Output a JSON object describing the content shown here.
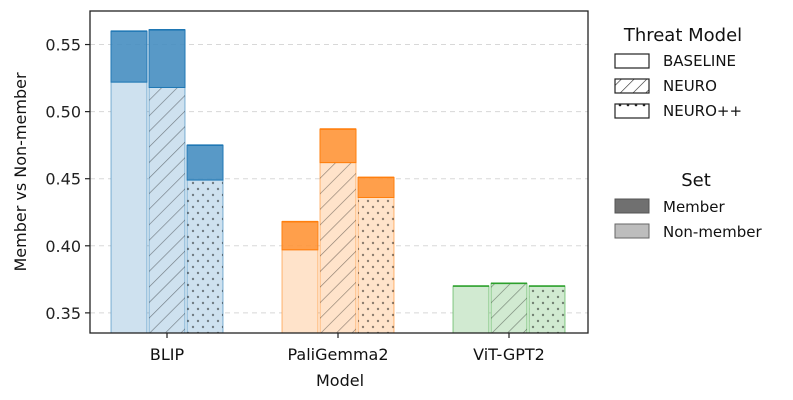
{
  "chart_data": {
    "type": "bar",
    "title": "",
    "xlabel": "Model",
    "ylabel": "Member vs Non-member",
    "ylim": [
      0.335,
      0.575
    ],
    "yticks": [
      0.35,
      0.4,
      0.45,
      0.5,
      0.55
    ],
    "ytick_labels": [
      "0.35",
      "0.40",
      "0.45",
      "0.50",
      "0.55"
    ],
    "grid": true,
    "categories": [
      "BLIP",
      "PaliGemma2",
      "ViT-GPT2"
    ],
    "colors": {
      "BLIP": "#1f77b4",
      "PaliGemma2": "#ff7f0e",
      "ViT-GPT2": "#2ca02c"
    },
    "series": [
      {
        "name": "BASELINE",
        "pattern": "none",
        "member": [
          0.56,
          0.418,
          0.37
        ],
        "non_member": [
          0.522,
          0.397,
          0.37
        ]
      },
      {
        "name": "NEURO",
        "pattern": "hatch",
        "member": [
          0.561,
          0.487,
          0.372
        ],
        "non_member": [
          0.518,
          0.462,
          0.372
        ]
      },
      {
        "name": "NEURO++",
        "pattern": "dots",
        "member": [
          0.475,
          0.451,
          0.37
        ],
        "non_member": [
          0.449,
          0.436,
          0.37
        ]
      }
    ],
    "legend_threat": {
      "title": "Threat Model",
      "items": [
        {
          "label": "BASELINE",
          "pattern": "none"
        },
        {
          "label": "NEURO",
          "pattern": "hatch"
        },
        {
          "label": "NEURO++",
          "pattern": "dots"
        }
      ],
      "placement": "outside-right-top"
    },
    "legend_set": {
      "title": "Set",
      "items": [
        {
          "label": "Member",
          "shade": "dark"
        },
        {
          "label": "Non-member",
          "shade": "light"
        }
      ],
      "placement": "outside-right-middle"
    }
  }
}
